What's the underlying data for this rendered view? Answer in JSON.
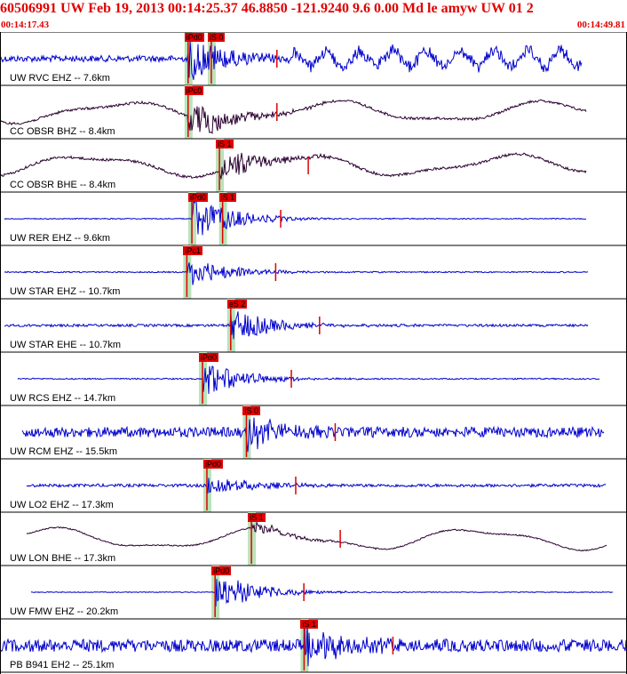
{
  "header": {
    "title": "60506991 UW Feb 19, 2013 00:14:25.37    46.8850  -121.9240   9.6  0.00  Md le amyw UW 01    2",
    "time_start": "00:14:17.43",
    "time_end": "00:14:49.81"
  },
  "colors": {
    "title_red": "#e00000",
    "trace_blue": "#0000cc",
    "trace_dark": "#2a0030",
    "pick_red": "#e00000",
    "window_green": "#b9e3b9",
    "panel_border": "#000000"
  },
  "chart_data": {
    "type": "seismogram",
    "time_range": [
      "00:14:17.43",
      "00:14:49.81"
    ],
    "panels": [
      {
        "label": "UW RVC EHZ -- 7.6km",
        "trace": "blue",
        "noise": 0.25,
        "burst": 1.0,
        "picks": [
          {
            "text": "iPd0",
            "t": 0.3
          },
          {
            "text": "iS 0",
            "t": 0.337
          }
        ]
      },
      {
        "label": "CC OBSR BHZ -- 8.4km",
        "trace": "dark",
        "noise": 0.1,
        "burst": 0.9,
        "picks": [
          {
            "text": "iPc0",
            "t": 0.3
          }
        ]
      },
      {
        "label": "CC OBSR BHE -- 8.4km",
        "trace": "dark",
        "noise": 0.1,
        "burst": 0.8,
        "picks": [
          {
            "text": "iS 1",
            "t": 0.35
          }
        ]
      },
      {
        "label": "UW RER EHZ -- 9.6km",
        "trace": "blue",
        "noise": 0.04,
        "burst": 1.0,
        "picks": [
          {
            "text": "iPd0",
            "t": 0.306
          },
          {
            "text": "iS 1",
            "t": 0.355
          }
        ]
      },
      {
        "label": "UW STAR EHZ -- 10.7km",
        "trace": "blue",
        "noise": 0.05,
        "burst": 0.7,
        "picks": [
          {
            "text": "iPc1",
            "t": 0.298
          }
        ]
      },
      {
        "label": "UW STAR EHE -- 10.7km",
        "trace": "blue",
        "noise": 0.1,
        "burst": 0.8,
        "picks": [
          {
            "text": "eS 2",
            "t": 0.368
          }
        ]
      },
      {
        "label": "UW RCS EHZ -- 14.7km",
        "trace": "blue",
        "noise": 0.05,
        "burst": 0.8,
        "picks": [
          {
            "text": "iPd0",
            "t": 0.323
          }
        ]
      },
      {
        "label": "UW RCM EHZ -- 15.5km",
        "trace": "blue",
        "noise": 0.4,
        "burst": 0.7,
        "picks": [
          {
            "text": "iS 0",
            "t": 0.393
          }
        ]
      },
      {
        "label": "UW LO2 EHZ -- 17.3km",
        "trace": "blue",
        "noise": 0.12,
        "burst": 0.5,
        "picks": [
          {
            "text": "iPd0",
            "t": 0.33
          }
        ]
      },
      {
        "label": "UW LON BHE -- 17.3km",
        "trace": "dark",
        "noise": 0.05,
        "burst": 0.3,
        "picks": [
          {
            "text": "iS 1",
            "t": 0.401
          }
        ]
      },
      {
        "label": "UW FMW EHZ -- 20.2km",
        "trace": "blue",
        "noise": 0.03,
        "burst": 0.9,
        "picks": [
          {
            "text": "iPd0",
            "t": 0.343
          }
        ]
      },
      {
        "label": "PB B941 EH2 -- 25.1km",
        "trace": "blue",
        "noise": 0.5,
        "burst": 0.9,
        "picks": [
          {
            "text": "iS 1",
            "t": 0.485
          }
        ]
      }
    ]
  }
}
